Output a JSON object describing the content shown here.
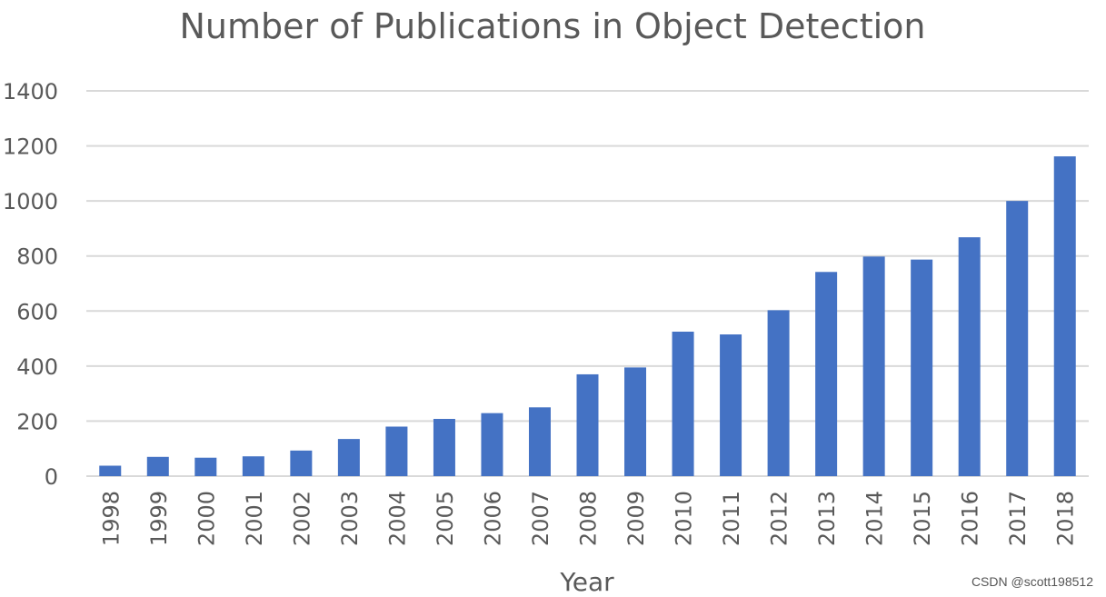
{
  "chart_data": {
    "type": "bar",
    "title": "Number of Publications in Object Detection",
    "xlabel": "Year",
    "ylabel": "",
    "categories": [
      "1998",
      "1999",
      "2000",
      "2001",
      "2002",
      "2003",
      "2004",
      "2005",
      "2006",
      "2007",
      "2008",
      "2009",
      "2010",
      "2011",
      "2012",
      "2013",
      "2014",
      "2015",
      "2016",
      "2017",
      "2018"
    ],
    "values": [
      38,
      70,
      67,
      72,
      93,
      135,
      180,
      208,
      229,
      250,
      370,
      395,
      525,
      515,
      603,
      742,
      798,
      787,
      868,
      1000,
      1162
    ],
    "yticks": [
      "0",
      "200",
      "400",
      "600",
      "800",
      "1000",
      "1200",
      "1400"
    ],
    "ylim": [
      0,
      1400
    ],
    "grid": true,
    "legend": "none",
    "bar_color": "#4472c4"
  },
  "watermark": "CSDN @scott198512"
}
